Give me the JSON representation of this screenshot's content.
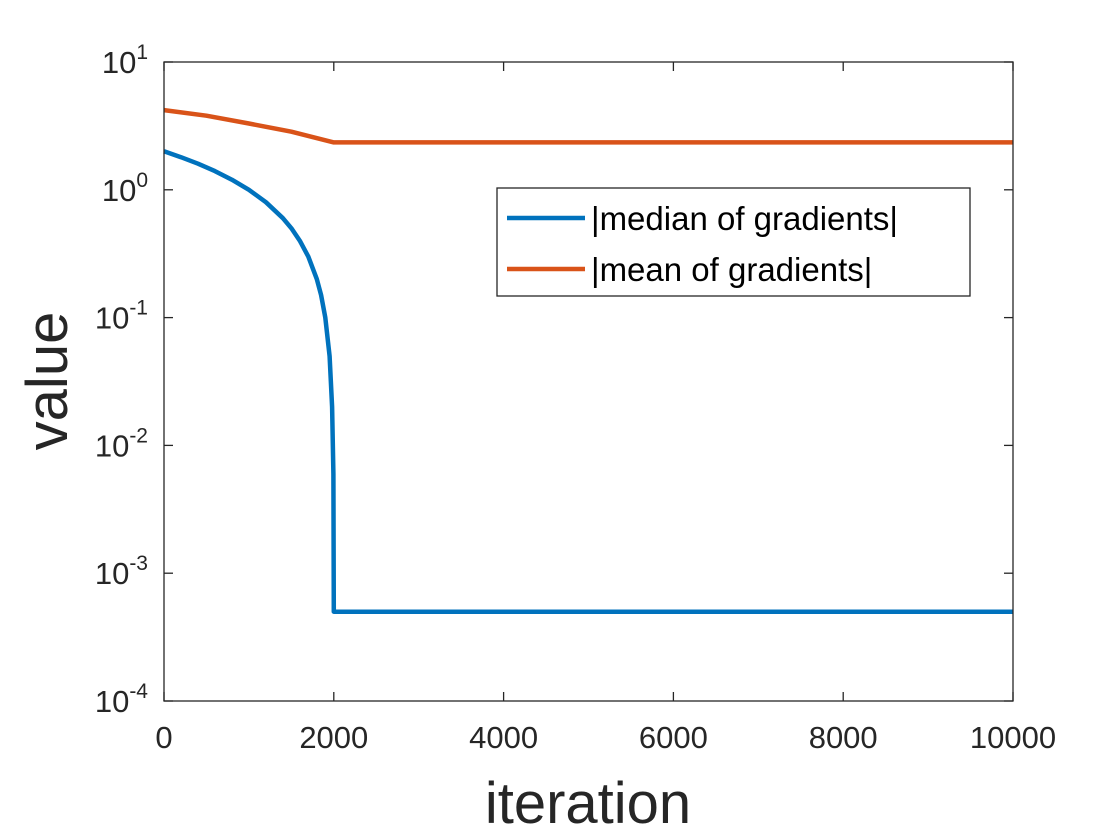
{
  "chart_data": {
    "type": "line",
    "xlabel": "iteration",
    "ylabel": "value",
    "xlim": [
      0,
      10000
    ],
    "ylim": [
      0.0001,
      10
    ],
    "yscale": "log",
    "xticks": [
      0,
      2000,
      4000,
      6000,
      8000,
      10000
    ],
    "xtick_labels": [
      "0",
      "2000",
      "4000",
      "6000",
      "8000",
      "10000"
    ],
    "yticks": [
      {
        "base": "10",
        "exp": "1",
        "value": 10
      },
      {
        "base": "10",
        "exp": "0",
        "value": 1
      },
      {
        "base": "10",
        "exp": "-1",
        "value": 0.1
      },
      {
        "base": "10",
        "exp": "-2",
        "value": 0.01
      },
      {
        "base": "10",
        "exp": "-3",
        "value": 0.001
      },
      {
        "base": "10",
        "exp": "-4",
        "value": 0.0001
      }
    ],
    "grid": false,
    "legend_position": "top-right",
    "series": [
      {
        "name": "|median of gradients|",
        "color": "#0072BD",
        "x": [
          0,
          200,
          400,
          600,
          800,
          1000,
          1200,
          1400,
          1500,
          1600,
          1700,
          1800,
          1850,
          1900,
          1950,
          1980,
          1995,
          2000,
          2100,
          4000,
          6000,
          8000,
          10000
        ],
        "y": [
          2.0,
          1.8,
          1.6,
          1.4,
          1.2,
          1.0,
          0.8,
          0.6,
          0.5,
          0.4,
          0.3,
          0.2,
          0.15,
          0.1,
          0.05,
          0.02,
          0.006,
          0.0005,
          0.0005,
          0.0005,
          0.0005,
          0.0005,
          0.0005
        ]
      },
      {
        "name": "|mean of gradients|",
        "color": "#D95319",
        "x": [
          0,
          500,
          1000,
          1500,
          2000,
          4000,
          6000,
          8000,
          10000
        ],
        "y": [
          4.2,
          3.8,
          3.3,
          2.85,
          2.35,
          2.35,
          2.35,
          2.35,
          2.35
        ]
      }
    ]
  }
}
